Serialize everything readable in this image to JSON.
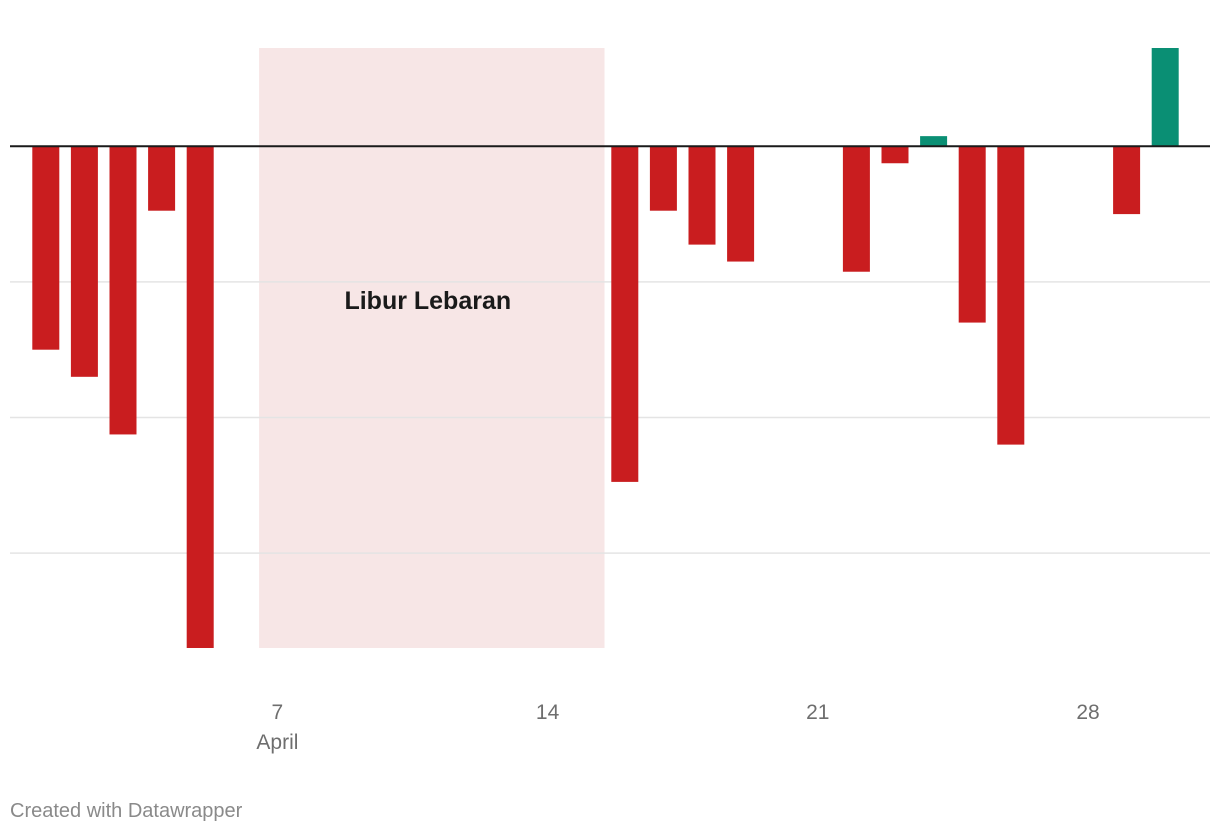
{
  "chart_data": {
    "type": "bar",
    "x_unit": "day of April",
    "x": [
      1,
      2,
      3,
      4,
      5,
      16,
      17,
      18,
      19,
      22,
      23,
      24,
      25,
      26,
      29,
      30
    ],
    "values": [
      -3.0,
      -3.4,
      -4.25,
      -0.95,
      -7.4,
      -4.95,
      -0.95,
      -1.45,
      -1.7,
      -1.85,
      -0.25,
      0.15,
      -2.6,
      -4.4,
      -1.0,
      1.45
    ],
    "ylim": [
      -7.4,
      1.45
    ],
    "gridlines": [
      -2,
      -4,
      -6
    ],
    "grid": true,
    "x_ticks": [
      {
        "day": 7,
        "label": "7",
        "sublabel": "April"
      },
      {
        "day": 14,
        "label": "14",
        "sublabel": ""
      },
      {
        "day": 21,
        "label": "21",
        "sublabel": ""
      },
      {
        "day": 28,
        "label": "28",
        "sublabel": ""
      }
    ],
    "highlight": {
      "from_day": 6.5,
      "to_day": 15.5,
      "label": "Libur Lebaran",
      "color": "#f7e6e6"
    },
    "colors": {
      "negative": "#c91d1f",
      "positive": "#0a8f74",
      "zero_line": "#1a1a1a",
      "grid": "#e4e4e4",
      "tick_text": "#6e6e6e"
    },
    "title": "",
    "xlabel": "",
    "ylabel": ""
  },
  "footer": {
    "credit": "Created with Datawrapper"
  }
}
